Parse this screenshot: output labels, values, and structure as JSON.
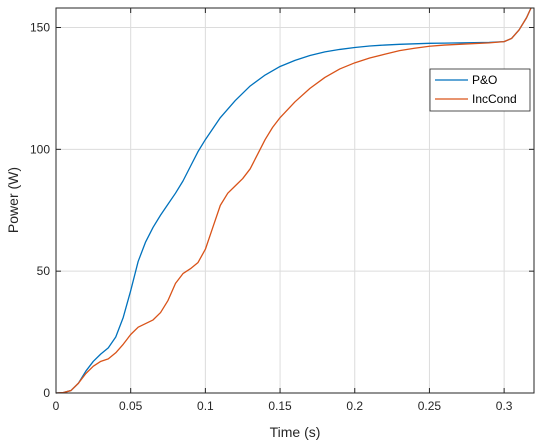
{
  "chart_data": {
    "type": "line",
    "title": "",
    "xlabel": "Time (s)",
    "ylabel": "Power (W)",
    "xlim": [
      0,
      0.32
    ],
    "ylim": [
      0,
      158
    ],
    "xticks": [
      0,
      0.05,
      0.1,
      0.15,
      0.2,
      0.25,
      0.3
    ],
    "xtick_labels": [
      "0",
      "0.05",
      "0.1",
      "0.15",
      "0.2",
      "0.25",
      "0.3"
    ],
    "yticks": [
      0,
      50,
      100,
      150
    ],
    "ytick_labels": [
      "0",
      "50",
      "100",
      "150"
    ],
    "grid": true,
    "legend_position": "top-right",
    "series": [
      {
        "name": "P&O",
        "color": "#0072BD",
        "points": [
          [
            0,
            0
          ],
          [
            0.005,
            0.2
          ],
          [
            0.01,
            1
          ],
          [
            0.015,
            4
          ],
          [
            0.02,
            9
          ],
          [
            0.025,
            13
          ],
          [
            0.03,
            16
          ],
          [
            0.035,
            18.5
          ],
          [
            0.04,
            23
          ],
          [
            0.045,
            31
          ],
          [
            0.05,
            42
          ],
          [
            0.055,
            54
          ],
          [
            0.06,
            62
          ],
          [
            0.065,
            68
          ],
          [
            0.07,
            73
          ],
          [
            0.075,
            77.5
          ],
          [
            0.08,
            82
          ],
          [
            0.085,
            87
          ],
          [
            0.09,
            93
          ],
          [
            0.095,
            99
          ],
          [
            0.1,
            104
          ],
          [
            0.11,
            113
          ],
          [
            0.12,
            120
          ],
          [
            0.13,
            126
          ],
          [
            0.14,
            130.5
          ],
          [
            0.15,
            134
          ],
          [
            0.16,
            136.5
          ],
          [
            0.17,
            138.5
          ],
          [
            0.18,
            140
          ],
          [
            0.19,
            141
          ],
          [
            0.2,
            141.8
          ],
          [
            0.21,
            142.4
          ],
          [
            0.22,
            142.8
          ],
          [
            0.23,
            143.1
          ],
          [
            0.24,
            143.3
          ],
          [
            0.25,
            143.5
          ],
          [
            0.26,
            143.6
          ],
          [
            0.27,
            143.7
          ],
          [
            0.28,
            143.8
          ],
          [
            0.29,
            143.9
          ],
          [
            0.3,
            144.2
          ],
          [
            0.305,
            145.5
          ],
          [
            0.31,
            149
          ],
          [
            0.315,
            154
          ],
          [
            0.318,
            158
          ]
        ]
      },
      {
        "name": "IncCond",
        "color": "#D95319",
        "points": [
          [
            0,
            0
          ],
          [
            0.005,
            0.2
          ],
          [
            0.01,
            1
          ],
          [
            0.015,
            4
          ],
          [
            0.02,
            8
          ],
          [
            0.025,
            11
          ],
          [
            0.03,
            13
          ],
          [
            0.035,
            14
          ],
          [
            0.04,
            16.5
          ],
          [
            0.045,
            20
          ],
          [
            0.05,
            24
          ],
          [
            0.055,
            27
          ],
          [
            0.06,
            28.5
          ],
          [
            0.065,
            30
          ],
          [
            0.07,
            33
          ],
          [
            0.075,
            38
          ],
          [
            0.08,
            45
          ],
          [
            0.085,
            49
          ],
          [
            0.09,
            51
          ],
          [
            0.095,
            53.5
          ],
          [
            0.1,
            59
          ],
          [
            0.105,
            68
          ],
          [
            0.11,
            77
          ],
          [
            0.115,
            82
          ],
          [
            0.12,
            85
          ],
          [
            0.125,
            88
          ],
          [
            0.13,
            92
          ],
          [
            0.135,
            98
          ],
          [
            0.14,
            104
          ],
          [
            0.145,
            109
          ],
          [
            0.15,
            113
          ],
          [
            0.16,
            119.5
          ],
          [
            0.17,
            125
          ],
          [
            0.18,
            129.5
          ],
          [
            0.19,
            133
          ],
          [
            0.2,
            135.5
          ],
          [
            0.21,
            137.5
          ],
          [
            0.22,
            139
          ],
          [
            0.23,
            140.5
          ],
          [
            0.24,
            141.5
          ],
          [
            0.25,
            142.3
          ],
          [
            0.26,
            142.8
          ],
          [
            0.27,
            143.1
          ],
          [
            0.28,
            143.4
          ],
          [
            0.29,
            143.7
          ],
          [
            0.3,
            144.2
          ],
          [
            0.305,
            145.5
          ],
          [
            0.31,
            149
          ],
          [
            0.315,
            154
          ],
          [
            0.318,
            158
          ]
        ]
      }
    ]
  }
}
